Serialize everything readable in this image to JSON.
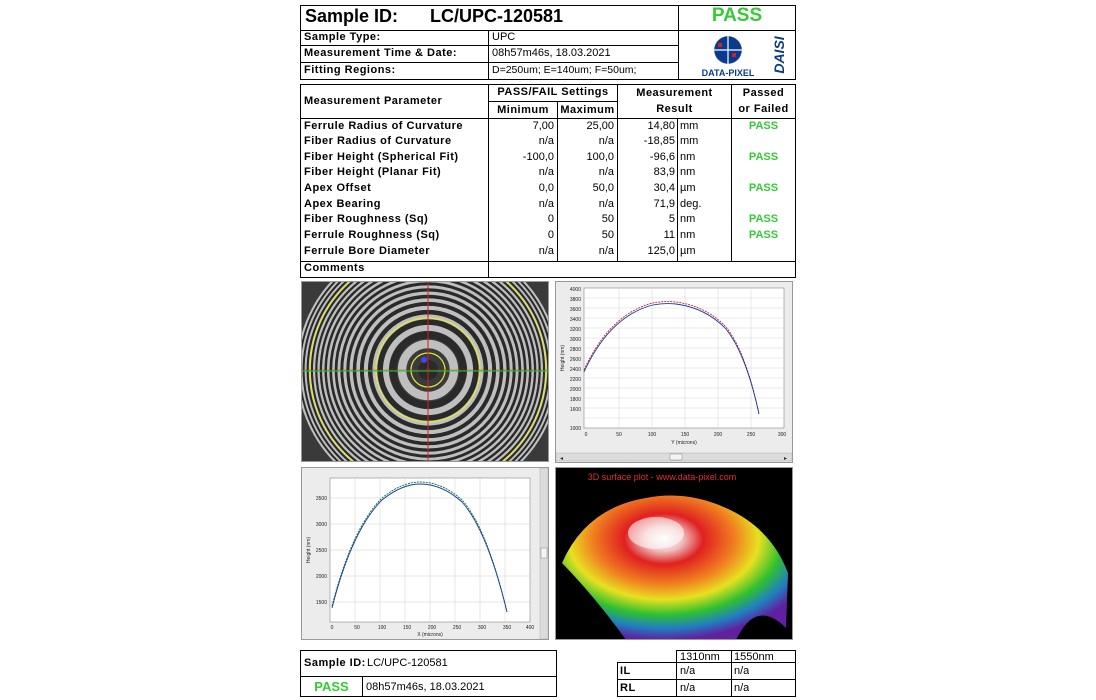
{
  "header": {
    "sample_id_label": "Sample ID:",
    "sample_id": "LC/UPC-120581",
    "status": "PASS",
    "sample_type_label": "Sample Type:",
    "sample_type": "UPC",
    "time_label": "Measurement Time & Date:",
    "time": "08h57m46s, 18.03.2021",
    "fit_label": "Fitting Regions:",
    "fit": "D=250um;   E=140um;   F=50um;",
    "logo_text": "DATA-PIXEL",
    "logo_side": "DAISI"
  },
  "table": {
    "col_param": "Measurement Parameter",
    "col_settings": "PASS/FAIL Settings",
    "col_min": "Minimum",
    "col_max": "Maximum",
    "col_result_1": "Measurement",
    "col_result_2": "Result",
    "col_pf_1": "Passed",
    "col_pf_2": "or Failed",
    "rows": [
      {
        "name": "Ferrule Radius of Curvature",
        "min": "7,00",
        "max": "25,00",
        "result": "14,80",
        "unit": "mm",
        "status": "PASS"
      },
      {
        "name": "Fiber Radius of Curvature",
        "min": "n/a",
        "max": "n/a",
        "result": "-18,85",
        "unit": "mm",
        "status": ""
      },
      {
        "name": "Fiber Height (Spherical Fit)",
        "min": "-100,0",
        "max": "100,0",
        "result": "-96,6",
        "unit": "nm",
        "status": "PASS"
      },
      {
        "name": "Fiber Height (Planar Fit)",
        "min": "n/a",
        "max": "n/a",
        "result": "83,9",
        "unit": "nm",
        "status": ""
      },
      {
        "name": "Apex Offset",
        "min": "0,0",
        "max": "50,0",
        "result": "30,4",
        "unit": "µm",
        "status": "PASS"
      },
      {
        "name": "Apex Bearing",
        "min": "n/a",
        "max": "n/a",
        "result": "71,9",
        "unit": "deg.",
        "status": ""
      },
      {
        "name": "Fiber Roughness (Sq)",
        "min": "0",
        "max": "50",
        "result": "5",
        "unit": "nm",
        "status": "PASS"
      },
      {
        "name": "Ferrule Roughness (Sq)",
        "min": "0",
        "max": "50",
        "result": "11",
        "unit": "nm",
        "status": "PASS"
      },
      {
        "name": "Ferrule Bore Diameter",
        "min": "n/a",
        "max": "n/a",
        "result": "125,0",
        "unit": "µm",
        "status": ""
      }
    ],
    "comments_label": "Comments"
  },
  "plots": {
    "y_profile": {
      "yticks": [
        "4000",
        "3800",
        "3600",
        "3400",
        "3200",
        "3000",
        "2800",
        "2600",
        "2400",
        "2200",
        "2000",
        "1800",
        "1600",
        "1000"
      ],
      "xticks": [
        "0",
        "50",
        "100",
        "150",
        "200",
        "250",
        "300"
      ],
      "ylabel": "Height (nm)",
      "xlabel": "Y (microns)"
    },
    "x_profile": {
      "yticks": [
        "3500",
        "3000",
        "2500",
        "2000",
        "1500"
      ],
      "xticks": [
        "0",
        "50",
        "100",
        "150",
        "200",
        "250",
        "300",
        "350",
        "400"
      ],
      "ylabel": "Height (nm)",
      "xlabel": "X (microns)"
    },
    "surface_title": "3D surface plot - www.data-pixel.com"
  },
  "footer": {
    "sample_id_label": "Sample ID:",
    "sample_id": "LC/UPC-120581",
    "status": "PASS",
    "time": "08h57m46s, 18.03.2021",
    "col_1310": "1310nm",
    "col_1550": "1550nm",
    "il_label": "IL",
    "rl_label": "RL",
    "il_1310": "n/a",
    "il_1550": "n/a",
    "rl_1310": "n/a",
    "rl_1550": "n/a"
  }
}
